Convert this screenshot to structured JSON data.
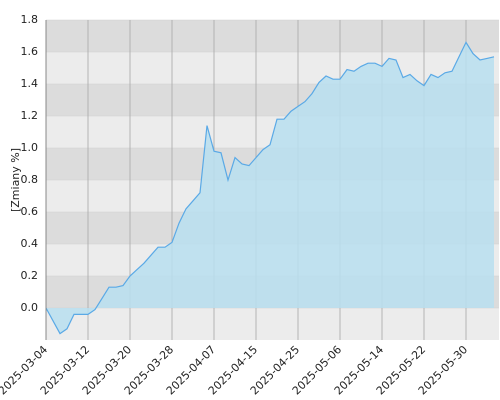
{
  "chart_data": {
    "type": "area",
    "y_label": "[Zmiany %]",
    "categories": [
      "2025-03-04",
      null,
      null,
      null,
      null,
      null,
      "2025-03-12",
      null,
      null,
      null,
      null,
      null,
      "2025-03-20",
      null,
      null,
      null,
      null,
      null,
      "2025-03-28",
      null,
      null,
      null,
      null,
      null,
      "2025-04-07",
      null,
      null,
      null,
      null,
      null,
      "2025-04-15",
      null,
      null,
      null,
      null,
      null,
      "2025-04-25",
      null,
      null,
      null,
      null,
      null,
      "2025-05-06",
      null,
      null,
      null,
      null,
      null,
      "2025-05-14",
      null,
      null,
      null,
      null,
      null,
      "2025-05-22",
      null,
      null,
      null,
      null,
      null,
      "2025-05-30",
      null,
      null,
      null,
      null
    ],
    "values": [
      0.0,
      -0.08,
      -0.16,
      -0.13,
      -0.04,
      -0.04,
      -0.04,
      -0.01,
      0.06,
      0.13,
      0.13,
      0.14,
      0.2,
      0.24,
      0.28,
      0.33,
      0.38,
      0.38,
      0.41,
      0.53,
      0.62,
      0.67,
      0.72,
      1.14,
      0.98,
      0.97,
      0.8,
      0.94,
      0.9,
      0.89,
      0.94,
      0.99,
      1.02,
      1.18,
      1.18,
      1.23,
      1.26,
      1.29,
      1.34,
      1.41,
      1.45,
      1.43,
      1.43,
      1.49,
      1.48,
      1.51,
      1.53,
      1.53,
      1.51,
      1.56,
      1.55,
      1.44,
      1.46,
      1.42,
      1.39,
      1.46,
      1.44,
      1.47,
      1.48,
      1.57,
      1.66,
      1.59,
      1.55,
      1.56,
      1.57
    ],
    "color": "#5aa9e6",
    "fill_color": "#b9dff0",
    "ylim": [
      -0.2,
      1.8
    ],
    "yticks": [
      {
        "value": 0,
        "label": "0.0"
      },
      0.2,
      0.4,
      0.6,
      0.8,
      {
        "value": 1,
        "label": "1.0"
      },
      1.2,
      1.4,
      1.6,
      1.8
    ],
    "grid": true
  }
}
